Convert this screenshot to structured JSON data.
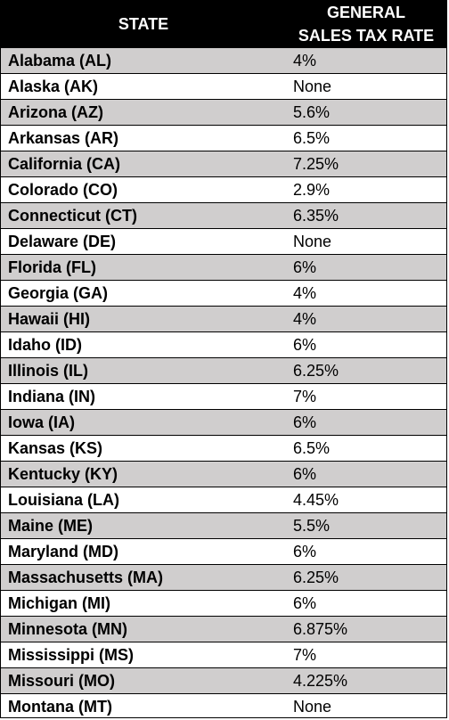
{
  "header": {
    "state_label": "STATE",
    "rate_label_line1": "GENERAL",
    "rate_label_line2": "SALES TAX RATE"
  },
  "colors": {
    "header_bg": "#000000",
    "header_text": "#ffffff",
    "shaded_row": "#d0cece",
    "plain_row": "#ffffff"
  },
  "rows": [
    {
      "state": "Alabama (AL)",
      "rate": "4%"
    },
    {
      "state": "Alaska (AK)",
      "rate": "None"
    },
    {
      "state": "Arizona (AZ)",
      "rate": "5.6%"
    },
    {
      "state": "Arkansas (AR)",
      "rate": "6.5%"
    },
    {
      "state": "California (CA)",
      "rate": "7.25%"
    },
    {
      "state": "Colorado (CO)",
      "rate": "2.9%"
    },
    {
      "state": "Connecticut (CT)",
      "rate": "6.35%"
    },
    {
      "state": "Delaware (DE)",
      "rate": "None"
    },
    {
      "state": "Florida (FL)",
      "rate": "6%"
    },
    {
      "state": "Georgia (GA)",
      "rate": "4%"
    },
    {
      "state": "Hawaii (HI)",
      "rate": "4%"
    },
    {
      "state": "Idaho (ID)",
      "rate": "6%"
    },
    {
      "state": "Illinois (IL)",
      "rate": "6.25%"
    },
    {
      "state": "Indiana (IN)",
      "rate": "7%"
    },
    {
      "state": "Iowa (IA)",
      "rate": "6%"
    },
    {
      "state": "Kansas (KS)",
      "rate": "6.5%"
    },
    {
      "state": "Kentucky (KY)",
      "rate": "6%"
    },
    {
      "state": "Louisiana (LA)",
      "rate": "4.45%"
    },
    {
      "state": "Maine (ME)",
      "rate": "5.5%"
    },
    {
      "state": "Maryland (MD)",
      "rate": "6%"
    },
    {
      "state": "Massachusetts (MA)",
      "rate": "6.25%"
    },
    {
      "state": "Michigan (MI)",
      "rate": "6%"
    },
    {
      "state": "Minnesota (MN)",
      "rate": "6.875%"
    },
    {
      "state": "Mississippi (MS)",
      "rate": "7%"
    },
    {
      "state": "Missouri (MO)",
      "rate": "4.225%"
    },
    {
      "state": "Montana (MT)",
      "rate": "None"
    }
  ]
}
